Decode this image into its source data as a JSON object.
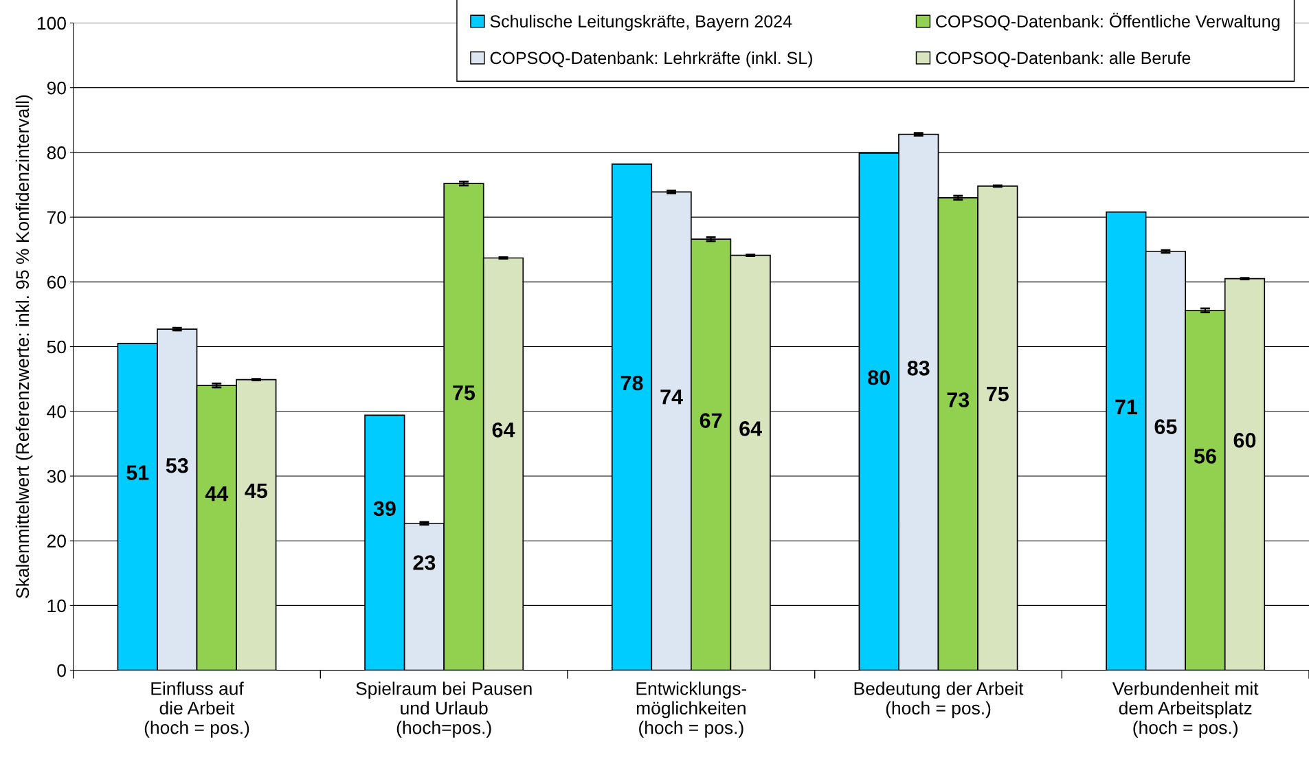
{
  "chart_data": {
    "type": "bar",
    "ylabel": "Skalenmittelwert (Referenzwerte: inkl. 95 % Konfidenzintervall)",
    "categories": [
      "Einfluss auf\ndie Arbeit\n(hoch = pos.)",
      "Spielraum bei Pausen\nund Urlaub\n(hoch=pos.)",
      "Entwicklungs-\nmöglichkeiten\n(hoch = pos.)",
      "Bedeutung der Arbeit\n(hoch = pos.)",
      "Verbundenheit mit\ndem Arbeitsplatz\n(hoch = pos.)"
    ],
    "series": [
      {
        "name": "Schulische Leitungskräfte, Bayern 2024",
        "color": "#00ccff",
        "values": [
          50.5,
          39.4,
          78.2,
          79.9,
          70.8
        ],
        "value_labels": [
          "51",
          "39",
          "78",
          "80",
          "71"
        ]
      },
      {
        "name": "COPSOQ-Datenbank: Lehrkräfte (inkl. SL)",
        "color": "#dce6f2",
        "values": [
          52.7,
          22.7,
          73.9,
          82.8,
          64.7
        ],
        "errors": [
          0.2,
          0.2,
          0.2,
          0.2,
          0.2
        ],
        "value_labels": [
          "53",
          "23",
          "74",
          "83",
          "65"
        ]
      },
      {
        "name": "COPSOQ-Datenbank: Öffentliche Verwaltung",
        "color": "#92d050",
        "values": [
          44.0,
          75.2,
          66.6,
          73.0,
          55.6
        ],
        "errors": [
          0.3,
          0.3,
          0.3,
          0.3,
          0.3
        ],
        "value_labels": [
          "44",
          "75",
          "67",
          "73",
          "56"
        ]
      },
      {
        "name": "COPSOQ-Datenbank: alle Berufe",
        "color": "#d7e4bd",
        "values": [
          44.9,
          63.7,
          64.1,
          74.8,
          60.5
        ],
        "errors": [
          0.1,
          0.1,
          0.1,
          0.1,
          0.1
        ],
        "value_labels": [
          "45",
          "64",
          "64",
          "75",
          "60"
        ]
      }
    ],
    "ylim": [
      0,
      100
    ],
    "yticks": [
      0,
      10,
      20,
      30,
      40,
      50,
      60,
      70,
      80,
      90,
      100
    ],
    "grid": "y",
    "legend": "top right"
  }
}
